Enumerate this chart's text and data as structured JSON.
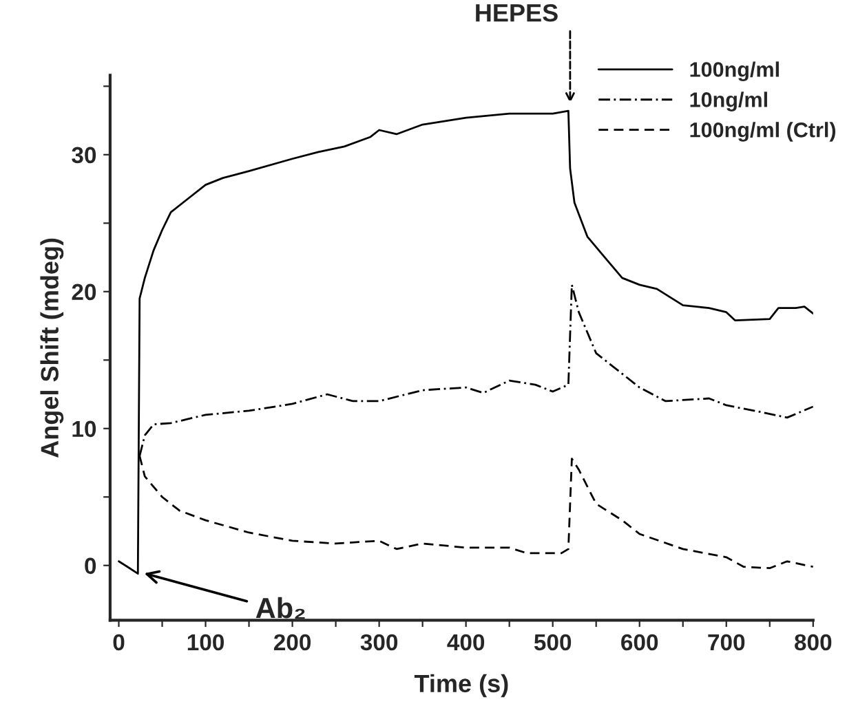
{
  "chart_data": {
    "type": "line",
    "xlabel": "Time (s)",
    "ylabel": "Angel Shift (mdeg)",
    "xlim": [
      -10,
      800
    ],
    "ylim": [
      -4,
      35.8
    ],
    "xticks": [
      0,
      {
        "value": 50,
        "label": null
      },
      100,
      {
        "value": 150,
        "label": null
      },
      200,
      {
        "value": 250,
        "label": null
      },
      300,
      {
        "value": 350,
        "label": null
      },
      400,
      {
        "value": 450,
        "label": null
      },
      500,
      {
        "value": 550,
        "label": null
      },
      600,
      {
        "value": 650,
        "label": null
      },
      700,
      {
        "value": 750,
        "label": null
      },
      800
    ],
    "yticks": [
      0,
      {
        "value": 5,
        "label": null
      },
      10,
      {
        "value": 15,
        "label": null
      },
      20,
      {
        "value": 25,
        "label": null
      },
      30,
      {
        "value": 35,
        "label": null
      }
    ],
    "grid": false,
    "legend": "top right",
    "marker": "none",
    "annotations": [
      {
        "text": "HEPES",
        "x": 520,
        "y": 33.5
      },
      {
        "text": "Ab₂",
        "x": 25,
        "y": -0.5
      }
    ],
    "series": [
      {
        "name": "100ng/ml",
        "color": "#000000",
        "line_style": "solid",
        "x": [
          0,
          10,
          22,
          24,
          30,
          40,
          50,
          60,
          80,
          100,
          120,
          150,
          200,
          230,
          260,
          290,
          300,
          320,
          350,
          400,
          450,
          500,
          518,
          520,
          525,
          540,
          560,
          580,
          600,
          620,
          650,
          680,
          700,
          710,
          750,
          760,
          780,
          790,
          800
        ],
        "values": [
          0.3,
          -0.1,
          -0.6,
          19.5,
          21,
          23,
          24.5,
          25.8,
          26.8,
          27.8,
          28.3,
          28.8,
          29.7,
          30.2,
          30.6,
          31.3,
          31.8,
          31.5,
          32.2,
          32.7,
          33,
          33,
          33.2,
          29,
          26.5,
          24,
          22.5,
          21,
          20.5,
          20.2,
          19,
          18.8,
          18.5,
          17.9,
          18,
          18.8,
          18.8,
          18.9,
          18.4
        ]
      },
      {
        "name": "10ng/ml",
        "color": "#000000",
        "line_style": "dashdot",
        "x": [
          24,
          30,
          40,
          60,
          100,
          150,
          200,
          240,
          270,
          300,
          350,
          400,
          420,
          450,
          480,
          500,
          518,
          522,
          530,
          550,
          580,
          600,
          630,
          680,
          700,
          740,
          770,
          800
        ],
        "values": [
          8,
          9.5,
          10.3,
          10.4,
          11,
          11.3,
          11.8,
          12.5,
          12,
          12,
          12.8,
          13,
          12.6,
          13.5,
          13.2,
          12.7,
          13.2,
          20.5,
          18.5,
          15.5,
          14,
          13,
          12,
          12.2,
          11.7,
          11.2,
          10.8,
          11.6
        ]
      },
      {
        "name": "100ng/ml (Ctrl)",
        "color": "#000000",
        "line_style": "dashed",
        "x": [
          24,
          30,
          50,
          70,
          100,
          150,
          200,
          250,
          300,
          320,
          350,
          400,
          450,
          470,
          510,
          518,
          522,
          530,
          550,
          580,
          600,
          650,
          700,
          720,
          750,
          770,
          800
        ],
        "values": [
          8,
          6.5,
          5,
          4,
          3.3,
          2.4,
          1.8,
          1.6,
          1.8,
          1.2,
          1.6,
          1.3,
          1.3,
          0.9,
          0.9,
          1.2,
          7.8,
          7,
          4.5,
          3.3,
          2.3,
          1.2,
          0.6,
          -0.1,
          -0.2,
          0.3,
          -0.1
        ]
      }
    ]
  }
}
